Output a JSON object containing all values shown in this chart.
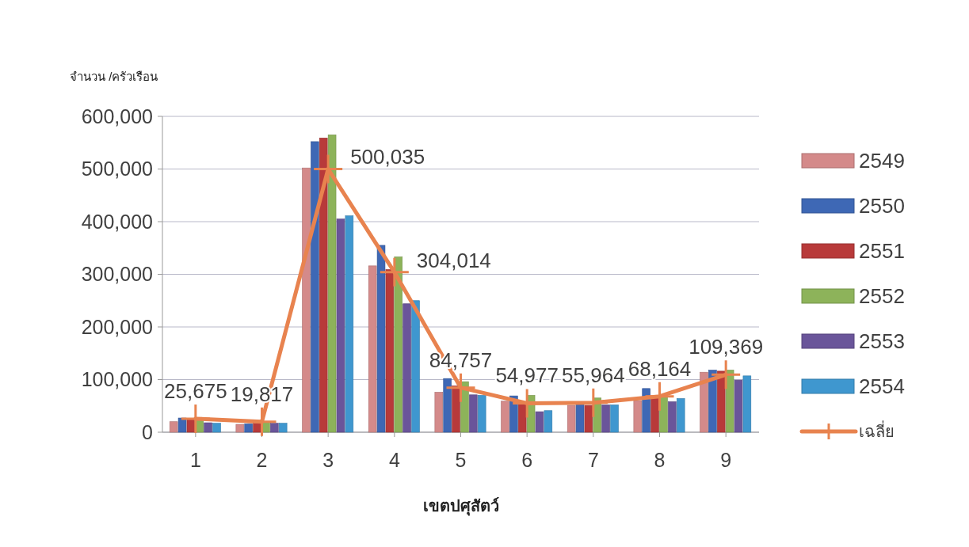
{
  "chart_data": {
    "type": "bar",
    "ylabel": "จำนวน /ครัวเรือน",
    "xlabel": "เขตปศุสัตว์",
    "categories": [
      "1",
      "2",
      "3",
      "4",
      "5",
      "6",
      "7",
      "8",
      "9"
    ],
    "series": [
      {
        "name": "2549",
        "color": "#d48a8a",
        "values": [
          20000,
          15000,
          502000,
          316000,
          76000,
          59000,
          51000,
          60000,
          114000
        ]
      },
      {
        "name": "2550",
        "color": "#3e68b5",
        "values": [
          27000,
          16000,
          552000,
          355000,
          102000,
          69000,
          53000,
          83000,
          118000
        ]
      },
      {
        "name": "2551",
        "color": "#b83a3a",
        "values": [
          25000,
          17000,
          559000,
          309000,
          88000,
          54000,
          51000,
          69000,
          116000
        ]
      },
      {
        "name": "2552",
        "color": "#8db35a",
        "values": [
          22000,
          19000,
          565000,
          333000,
          96000,
          70000,
          65000,
          71000,
          118000
        ]
      },
      {
        "name": "2553",
        "color": "#6a559a",
        "values": [
          18000,
          17000,
          405000,
          244000,
          71000,
          39000,
          52000,
          58000,
          99000
        ]
      },
      {
        "name": "2554",
        "color": "#3f97cf",
        "values": [
          17000,
          17000,
          411000,
          250000,
          70000,
          41000,
          52000,
          64000,
          107000
        ]
      },
      {
        "name": "เฉลี่ย",
        "type": "line",
        "color": "#e8834f",
        "marker": "cross",
        "values": [
          25675,
          19817,
          500035,
          304014,
          84757,
          54977,
          55964,
          68164,
          109369
        ],
        "value_labels": [
          "25,675",
          "19,817",
          "500,035",
          "304,014",
          "84,757",
          "54,977",
          "55,964",
          "68,164",
          "109,369"
        ]
      }
    ],
    "ylim": [
      0,
      600000
    ],
    "yticks": [
      {
        "value": 0,
        "label": "0"
      },
      {
        "value": 100000,
        "label": "100,000"
      },
      {
        "value": 200000,
        "label": "200,000"
      },
      {
        "value": 300000,
        "label": "300,000"
      },
      {
        "value": 400000,
        "label": "400,000"
      },
      {
        "value": 500000,
        "label": "500,000"
      },
      {
        "value": 600000,
        "label": "600,000"
      }
    ],
    "grid": "y",
    "legend": "right"
  }
}
